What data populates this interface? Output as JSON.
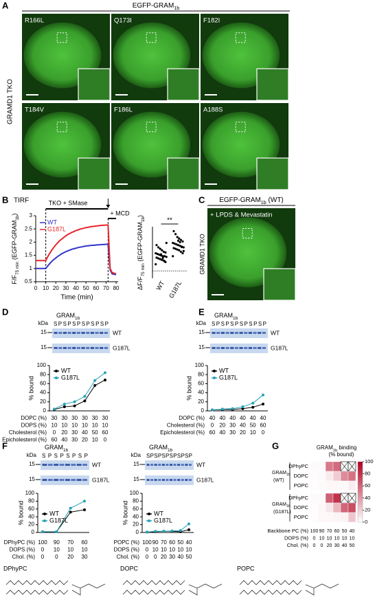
{
  "panels": {
    "A": {
      "letter": "A",
      "title": [
        "EGFP-GRAM",
        {
          "sub": "1b"
        }
      ],
      "side_label": "GRAMD1 TKO",
      "images": [
        "R166L",
        "Q173I",
        "F182I",
        "T184V",
        "F186L",
        "A188S"
      ]
    },
    "B": {
      "letter": "B",
      "method": "TIRF"
    },
    "C": {
      "letter": "C",
      "title": [
        "EGFP-GRAM",
        {
          "sub": "1b"
        },
        " (WT)"
      ],
      "image_label": "+ LPDS & Mevastatin",
      "side_label": "GRAMD1 TKO"
    },
    "D": {
      "letter": "D"
    },
    "E": {
      "letter": "E"
    },
    "F": {
      "letter": "F"
    },
    "G": {
      "letter": "G"
    },
    "structures": [
      "DPhyPC",
      "DOPC",
      "POPC"
    ]
  },
  "chart_data": [
    {
      "type": "line",
      "ylabel": [
        "F/F",
        {
          "sub": "75 min"
        },
        " (EGFP-GRAM",
        {
          "sub": "1b"
        },
        ")"
      ],
      "xlabel": "Time (min)",
      "x": [
        0,
        2,
        4,
        6,
        8,
        10,
        12,
        14,
        16,
        18,
        20,
        22,
        24,
        26,
        28,
        30,
        32,
        34,
        36,
        38,
        40,
        42,
        44,
        46,
        48,
        50,
        52,
        54,
        56,
        58,
        60,
        62,
        64,
        66,
        68,
        70,
        72,
        74,
        76,
        78,
        80
      ],
      "xlim": [
        0,
        82
      ],
      "xticks": [
        0,
        10,
        20,
        30,
        40,
        50,
        60,
        70,
        80
      ],
      "ylim": [
        0.5,
        3
      ],
      "yticks": [
        0.5,
        1,
        1.5,
        2,
        2.5,
        3
      ],
      "series": [
        {
          "name": "WT",
          "color": "#3333cc",
          "values": [
            1,
            1,
            1,
            1,
            1,
            1,
            1.1,
            1.19,
            1.27,
            1.34,
            1.4,
            1.46,
            1.51,
            1.56,
            1.6,
            1.64,
            1.67,
            1.7,
            1.73,
            1.75,
            1.77,
            1.79,
            1.81,
            1.82,
            1.84,
            1.85,
            1.86,
            1.87,
            1.88,
            1.88,
            1.89,
            1.9,
            1.9,
            1.91,
            1.91,
            1.92,
            1.92,
            0.95,
            0.8,
            0.78,
            0.77
          ]
        },
        {
          "name": "G187L",
          "color": "#e8242a",
          "values": [
            1.3,
            1.3,
            1.3,
            1.3,
            1.3,
            1.3,
            1.45,
            1.58,
            1.7,
            1.8,
            1.9,
            1.98,
            2.06,
            2.12,
            2.18,
            2.24,
            2.29,
            2.33,
            2.37,
            2.4,
            2.44,
            2.46,
            2.49,
            2.51,
            2.53,
            2.55,
            2.56,
            2.58,
            2.59,
            2.6,
            2.61,
            2.62,
            2.63,
            2.64,
            2.64,
            2.65,
            2.65,
            1.0,
            0.85,
            0.82,
            0.8
          ]
        }
      ],
      "annotations": [
        {
          "text": "TKO + SMase",
          "start": 10,
          "end": 72
        },
        {
          "text": "+ MCD",
          "start": 72,
          "end": 80
        }
      ]
    },
    {
      "type": "strip",
      "ylabel": [
        "ΔF/F",
        {
          "sub": "75 min"
        },
        " (EGFP-GRAM",
        {
          "sub": "1b"
        },
        ")"
      ],
      "ylim": [
        -0.5,
        3
      ],
      "significance": "**",
      "color": "#000000",
      "groups": [
        {
          "name": "WT",
          "values": [
            0.45,
            0.6,
            0.7,
            0.75,
            0.8,
            0.85,
            0.9,
            0.95,
            1.0,
            1.0,
            1.05,
            1.1,
            1.15,
            1.2,
            1.25,
            1.3,
            1.4,
            1.5,
            1.6,
            1.75,
            1.9,
            0.65,
            0.88,
            1.12
          ]
        },
        {
          "name": "G187L",
          "values": [
            1.0,
            1.2,
            1.3,
            1.4,
            1.45,
            1.5,
            1.55,
            1.6,
            1.65,
            1.7,
            1.75,
            1.8,
            1.85,
            1.9,
            2.0,
            2.1,
            2.2,
            2.3,
            2.5,
            2.7,
            1.35,
            1.62,
            1.95,
            2.05
          ]
        }
      ]
    },
    {
      "type": "line",
      "gel": {
        "title": [
          "GRAM",
          {
            "sub": "1b"
          }
        ],
        "unit": "kDa",
        "lanes": "SPSPSPSPSPSP",
        "marker": "15",
        "rows": [
          "WT",
          "G187L"
        ]
      },
      "ylabel": "% bound",
      "ylim": [
        0,
        100
      ],
      "yticks": [
        0,
        20,
        40,
        60,
        80,
        100
      ],
      "series": [
        {
          "name": "WT",
          "color": "#000000",
          "values": [
            3,
            9,
            11,
            22,
            56,
            68
          ]
        },
        {
          "name": "G187L",
          "color": "#27a3b5",
          "values": [
            4,
            15,
            20,
            32,
            67,
            84
          ]
        }
      ],
      "table": [
        {
          "name": "DOPC (%)",
          "values": [
            30,
            30,
            30,
            30,
            30,
            30
          ]
        },
        {
          "name": "DOPS (%)",
          "values": [
            10,
            10,
            10,
            10,
            10,
            10
          ]
        },
        {
          "name": "Cholesterol (%)",
          "values": [
            0,
            20,
            30,
            40,
            50,
            60
          ]
        },
        {
          "name": "Epicholesterol (%)",
          "values": [
            60,
            40,
            30,
            20,
            10,
            0
          ]
        }
      ]
    },
    {
      "type": "line",
      "gel": {
        "title": [
          "GRAM",
          {
            "sub": "1b"
          }
        ],
        "unit": "kDa",
        "lanes": "SPSPSPSPSPSP",
        "marker": "15",
        "rows": [
          "WT",
          "G187L"
        ]
      },
      "ylabel": "% bound",
      "ylim": [
        0,
        100
      ],
      "yticks": [
        0,
        20,
        40,
        60,
        80,
        100
      ],
      "series": [
        {
          "name": "WT",
          "color": "#000000",
          "values": [
            2,
            3,
            3,
            5,
            8,
            15
          ]
        },
        {
          "name": "G187L",
          "color": "#27a3b5",
          "values": [
            2,
            4,
            5,
            9,
            17,
            35
          ]
        }
      ],
      "table": [
        {
          "name": "DOPC (%)",
          "values": [
            40,
            40,
            40,
            40,
            40,
            40
          ]
        },
        {
          "name": "Cholesterol (%)",
          "values": [
            0,
            20,
            30,
            40,
            50,
            60
          ]
        },
        {
          "name": "Epicholesterol (%)",
          "values": [
            60,
            40,
            30,
            20,
            10,
            0
          ]
        }
      ]
    },
    {
      "type": "line",
      "gel": {
        "title": [
          "GRAM",
          {
            "sub": "1b"
          }
        ],
        "unit": "kDa",
        "lanes": "S P S P S P S P",
        "marker": "15",
        "rows": [
          "WT",
          "G187L"
        ]
      },
      "ylabel": "% bound",
      "ylim": [
        0,
        100
      ],
      "yticks": [
        0,
        20,
        40,
        60,
        80,
        100
      ],
      "series": [
        {
          "name": "WT",
          "color": "#000000",
          "values": [
            2,
            2,
            52,
            58
          ]
        },
        {
          "name": "G187L",
          "color": "#27a3b5",
          "values": [
            2,
            2,
            62,
            80
          ]
        }
      ],
      "table": [
        {
          "name": "DPhyPC (%)",
          "values": [
            100,
            90,
            70,
            60
          ]
        },
        {
          "name": "DOPS (%)",
          "values": [
            0,
            10,
            10,
            10
          ]
        },
        {
          "name": "Chol. (%)",
          "values": [
            0,
            0,
            20,
            30
          ]
        }
      ]
    },
    {
      "type": "line",
      "gel": {
        "title": [
          "GRAM",
          {
            "sub": "1b"
          }
        ],
        "unit": "kDa",
        "lanes": "SPSPSPSPSPSP",
        "marker": "15",
        "rows": [
          "WT",
          "G187L"
        ]
      },
      "ylabel": "% bound",
      "ylim": [
        0,
        100
      ],
      "yticks": [
        0,
        20,
        40,
        60,
        80,
        100
      ],
      "series": [
        {
          "name": "WT",
          "color": "#000000",
          "values": [
            1,
            2,
            3,
            3,
            2,
            7
          ]
        },
        {
          "name": "G187L",
          "color": "#27a3b5",
          "values": [
            1,
            3,
            3,
            4,
            5,
            22
          ]
        }
      ],
      "table": [
        {
          "name": "POPC (%)",
          "values": [
            100,
            90,
            70,
            60,
            50,
            40
          ]
        },
        {
          "name": "DOPS (%)",
          "values": [
            0,
            10,
            10,
            10,
            10,
            10
          ]
        },
        {
          "name": "Chol. (%)",
          "values": [
            0,
            0,
            20,
            30,
            40,
            50
          ]
        }
      ]
    },
    {
      "type": "heatmap",
      "title": [
        "GRAM",
        {
          "sub": "1b"
        },
        " binding"
      ],
      "subtitle": "(% bound)",
      "colormap": [
        "#ffffff",
        "#b2001f"
      ],
      "clim": [
        0,
        100
      ],
      "cticks": [
        0,
        20,
        40,
        60,
        80,
        100
      ],
      "groups": [
        {
          "name": [
            "GRAM",
            {
              "sub": "1b"
            }
          ],
          "variant": "(WT)",
          "rows": [
            {
              "name": "DPhyPC",
              "values": [
                2,
                2,
                52,
                58,
                null,
                null
              ]
            },
            {
              "name": "DOPC",
              "values": [
                1,
                2,
                8,
                20,
                45,
                55
              ]
            },
            {
              "name": "POPC",
              "values": [
                1,
                2,
                3,
                3,
                2,
                7
              ]
            }
          ]
        },
        {
          "name": [
            "GRAM",
            {
              "sub": "1b"
            }
          ],
          "variant": "(G187L)",
          "rows": [
            {
              "name": "DPhyPC",
              "values": [
                2,
                2,
                62,
                80,
                null,
                null
              ]
            },
            {
              "name": "DOPC",
              "values": [
                1,
                3,
                10,
                28,
                60,
                70
              ]
            },
            {
              "name": "POPC",
              "values": [
                1,
                3,
                3,
                4,
                5,
                22
              ]
            }
          ]
        }
      ],
      "table": [
        {
          "name": "Backbone PC (%)",
          "values": [
            100,
            90,
            70,
            60,
            50,
            40
          ]
        },
        {
          "name": "DOPS (%)",
          "values": [
            0,
            10,
            10,
            10,
            10,
            10
          ]
        },
        {
          "name": "Chol. (%)",
          "values": [
            0,
            0,
            20,
            30,
            40,
            50
          ]
        }
      ]
    }
  ]
}
